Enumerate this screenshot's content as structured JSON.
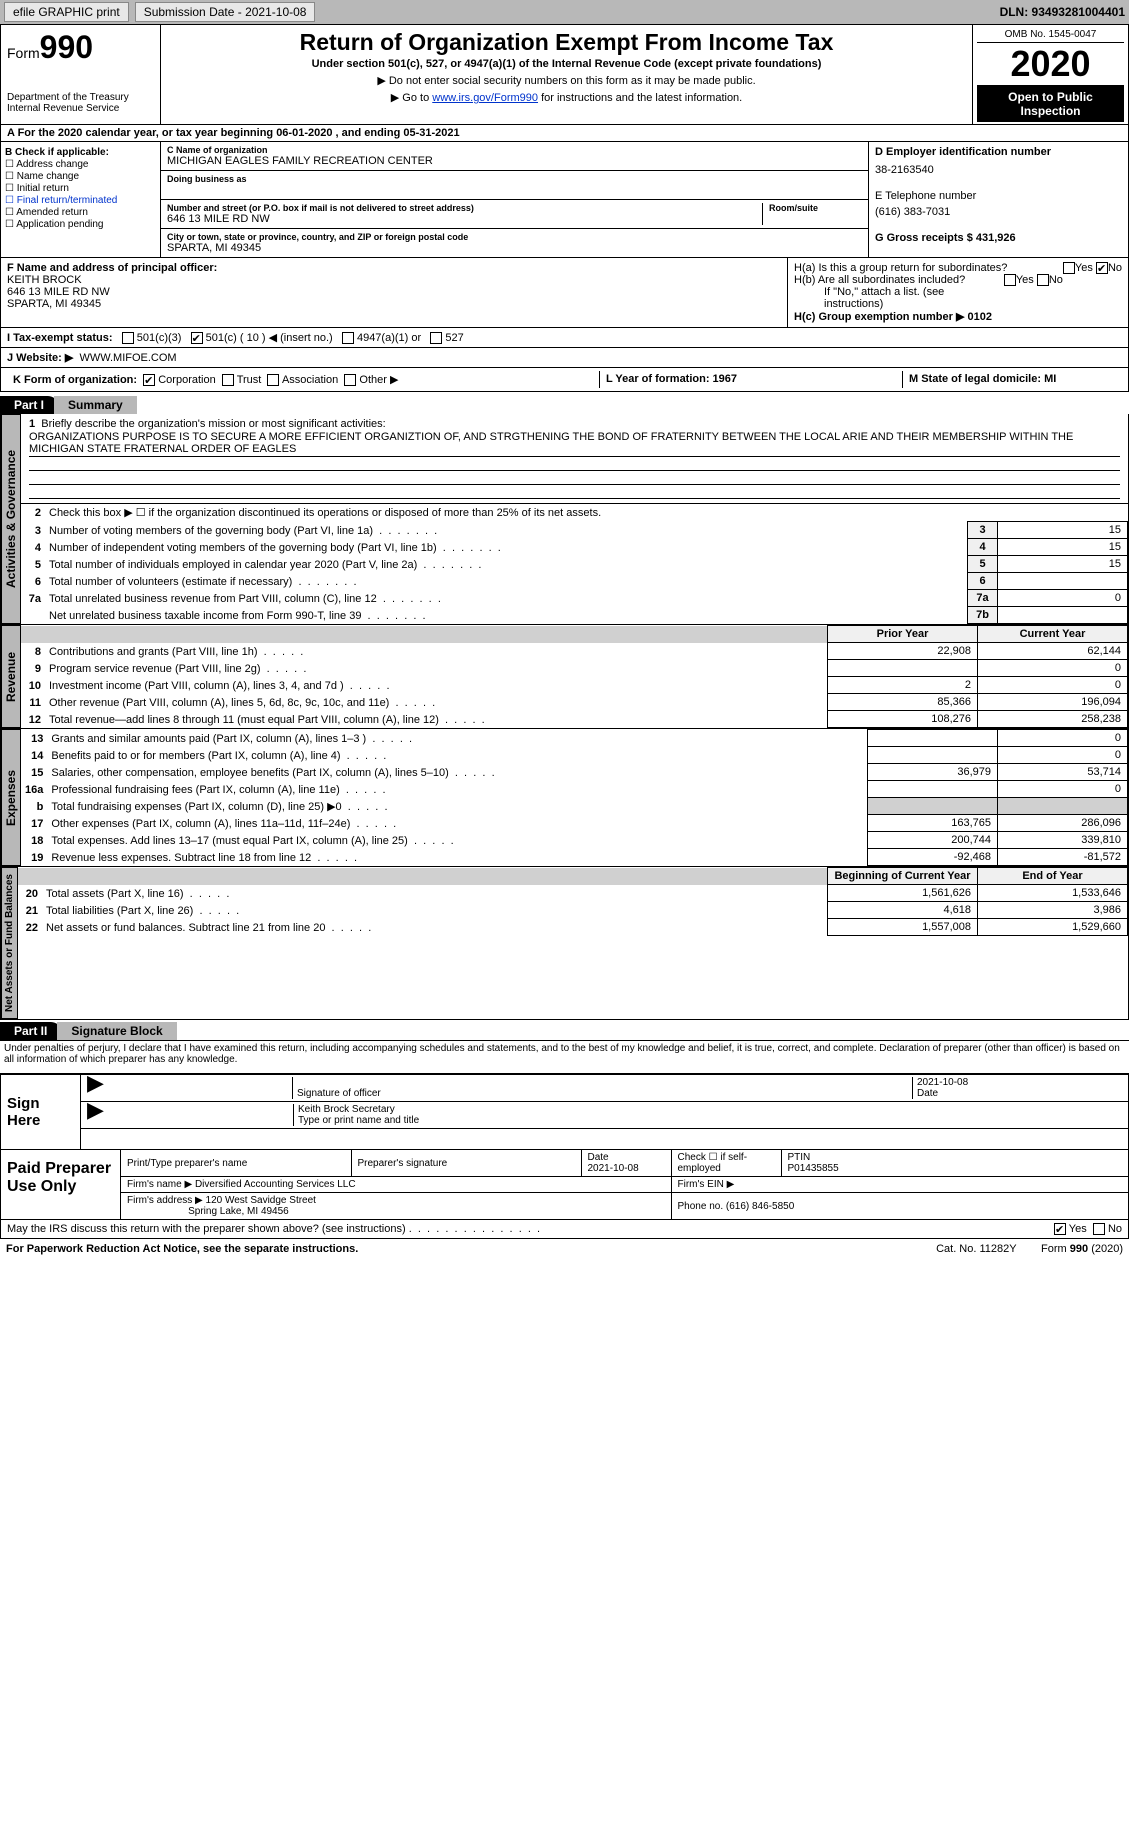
{
  "topbar": {
    "efile": "efile GRAPHIC print",
    "submission": "Submission Date - 2021-10-08",
    "dln": "DLN: 93493281004401"
  },
  "header": {
    "form_label": "Form",
    "form_num": "990",
    "dept": "Department of the Treasury Internal Revenue Service",
    "title": "Return of Organization Exempt From Income Tax",
    "subtitle": "Under section 501(c), 527, or 4947(a)(1) of the Internal Revenue Code (except private foundations)",
    "note1": "▶ Do not enter social security numbers on this form as it may be made public.",
    "note2_pre": "▶ Go to ",
    "note2_link": "www.irs.gov/Form990",
    "note2_post": " for instructions and the latest information.",
    "omb": "OMB No. 1545-0047",
    "year": "2020",
    "inspect": "Open to Public Inspection"
  },
  "row_a": "A For the 2020 calendar year, or tax year beginning 06-01-2020   , and ending 05-31-2021",
  "section_b": {
    "b_label": "B Check if applicable:",
    "checks": [
      "Address change",
      "Name change",
      "Initial return",
      "Final return/terminated",
      "Amended return",
      "Application pending"
    ],
    "c_label": "C Name of organization",
    "c_val": "MICHIGAN EAGLES FAMILY RECREATION CENTER",
    "dba_label": "Doing business as",
    "addr_label": "Number and street (or P.O. box if mail is not delivered to street address)",
    "addr_val": "646 13 MILE RD NW",
    "room_label": "Room/suite",
    "city_label": "City or town, state or province, country, and ZIP or foreign postal code",
    "city_val": "SPARTA, MI  49345",
    "d_label": "D Employer identification number",
    "d_val": "38-2163540",
    "e_label": "E Telephone number",
    "e_val": "(616) 383-7031",
    "g_label": "G Gross receipts $ 431,926"
  },
  "fhg": {
    "f_label": "F  Name and address of principal officer:",
    "f_name": "KEITH BROCK",
    "f_addr1": "646 13 MILE RD NW",
    "f_addr2": "SPARTA, MI  49345",
    "ha": "H(a)  Is this a group return for subordinates?",
    "hb": "H(b)  Are all subordinates included?",
    "hb_note": "If \"No,\" attach a list. (see instructions)",
    "hc": "H(c)  Group exemption number ▶   0102",
    "yes": "Yes",
    "no": "No"
  },
  "row_i": {
    "label": "I    Tax-exempt status:",
    "o1": "501(c)(3)",
    "o2": "501(c) ( 10 ) ◀ (insert no.)",
    "o3": "4947(a)(1) or",
    "o4": "527"
  },
  "row_j": {
    "label": "J   Website: ▶",
    "val": "WWW.MIFOE.COM"
  },
  "row_k": {
    "label": "K Form of organization:",
    "o1": "Corporation",
    "o2": "Trust",
    "o3": "Association",
    "o4": "Other ▶"
  },
  "row_lm": {
    "l": "L Year of formation: 1967",
    "m": "M State of legal domicile: MI"
  },
  "part1": {
    "label": "Part I",
    "title": "Summary",
    "tab1": "Activities & Governance",
    "tab2": "Revenue",
    "tab3": "Expenses",
    "tab4": "Net Assets or Fund Balances",
    "q1": "Briefly describe the organization's mission or most significant activities:",
    "q1v": "ORGANIZATIONS PURPOSE IS TO SECURE A MORE EFFICIENT ORGANIZTION OF, AND STRGTHENING THE BOND OF FRATERNITY BETWEEN THE LOCAL ARIE AND THEIR MEMBERSHIP WITHIN THE MICHIGAN STATE FRATERNAL ORDER OF EAGLES",
    "q2": "Check this box ▶ ☐  if the organization discontinued its operations or disposed of more than 25% of its net assets.",
    "rows_gov": [
      {
        "n": "3",
        "t": "Number of voting members of the governing body (Part VI, line 1a)",
        "b": "3",
        "v": "15"
      },
      {
        "n": "4",
        "t": "Number of independent voting members of the governing body (Part VI, line 1b)",
        "b": "4",
        "v": "15"
      },
      {
        "n": "5",
        "t": "Total number of individuals employed in calendar year 2020 (Part V, line 2a)",
        "b": "5",
        "v": "15"
      },
      {
        "n": "6",
        "t": "Total number of volunteers (estimate if necessary)",
        "b": "6",
        "v": ""
      },
      {
        "n": "7a",
        "t": "Total unrelated business revenue from Part VIII, column (C), line 12",
        "b": "7a",
        "v": "0"
      },
      {
        "n": "",
        "t": "Net unrelated business taxable income from Form 990-T, line 39",
        "b": "7b",
        "v": ""
      }
    ],
    "col_prior": "Prior Year",
    "col_curr": "Current Year",
    "rows_rev": [
      {
        "n": "8",
        "t": "Contributions and grants (Part VIII, line 1h)",
        "p": "22,908",
        "c": "62,144"
      },
      {
        "n": "9",
        "t": "Program service revenue (Part VIII, line 2g)",
        "p": "",
        "c": "0"
      },
      {
        "n": "10",
        "t": "Investment income (Part VIII, column (A), lines 3, 4, and 7d )",
        "p": "2",
        "c": "0"
      },
      {
        "n": "11",
        "t": "Other revenue (Part VIII, column (A), lines 5, 6d, 8c, 9c, 10c, and 11e)",
        "p": "85,366",
        "c": "196,094"
      },
      {
        "n": "12",
        "t": "Total revenue—add lines 8 through 11 (must equal Part VIII, column (A), line 12)",
        "p": "108,276",
        "c": "258,238"
      }
    ],
    "rows_exp": [
      {
        "n": "13",
        "t": "Grants and similar amounts paid (Part IX, column (A), lines 1–3 )",
        "p": "",
        "c": "0"
      },
      {
        "n": "14",
        "t": "Benefits paid to or for members (Part IX, column (A), line 4)",
        "p": "",
        "c": "0"
      },
      {
        "n": "15",
        "t": "Salaries, other compensation, employee benefits (Part IX, column (A), lines 5–10)",
        "p": "36,979",
        "c": "53,714"
      },
      {
        "n": "16a",
        "t": "Professional fundraising fees (Part IX, column (A), line 11e)",
        "p": "",
        "c": "0"
      },
      {
        "n": "b",
        "t": "Total fundraising expenses (Part IX, column (D), line 25) ▶0",
        "p": "shade",
        "c": "shade"
      },
      {
        "n": "17",
        "t": "Other expenses (Part IX, column (A), lines 11a–11d, 11f–24e)",
        "p": "163,765",
        "c": "286,096"
      },
      {
        "n": "18",
        "t": "Total expenses. Add lines 13–17 (must equal Part IX, column (A), line 25)",
        "p": "200,744",
        "c": "339,810"
      },
      {
        "n": "19",
        "t": "Revenue less expenses. Subtract line 18 from line 12",
        "p": "-92,468",
        "c": "-81,572"
      }
    ],
    "col_beg": "Beginning of Current Year",
    "col_end": "End of Year",
    "rows_net": [
      {
        "n": "20",
        "t": "Total assets (Part X, line 16)",
        "p": "1,561,626",
        "c": "1,533,646"
      },
      {
        "n": "21",
        "t": "Total liabilities (Part X, line 26)",
        "p": "4,618",
        "c": "3,986"
      },
      {
        "n": "22",
        "t": "Net assets or fund balances. Subtract line 21 from line 20",
        "p": "1,557,008",
        "c": "1,529,660"
      }
    ]
  },
  "part2": {
    "label": "Part II",
    "title": "Signature Block",
    "decl": "Under penalties of perjury, I declare that I have examined this return, including accompanying schedules and statements, and to the best of my knowledge and belief, it is true, correct, and complete. Declaration of preparer (other than officer) is based on all information of which preparer has any knowledge.",
    "sign_here": "Sign Here",
    "sig_officer": "Signature of officer",
    "sig_date": "2021-10-08",
    "date_lbl": "Date",
    "name_title": "Keith Brock  Secretary",
    "name_lbl": "Type or print name and title",
    "paid_prep": "Paid Preparer Use Only",
    "prep_name_lbl": "Print/Type preparer's name",
    "prep_sig_lbl": "Preparer's signature",
    "prep_date_lbl": "Date",
    "prep_date": "2021-10-08",
    "prep_check": "Check ☐ if self-employed",
    "ptin_lbl": "PTIN",
    "ptin": "P01435855",
    "firm_name_lbl": "Firm's name    ▶",
    "firm_name": "Diversified Accounting Services LLC",
    "firm_ein_lbl": "Firm's EIN ▶",
    "firm_addr_lbl": "Firm's address ▶",
    "firm_addr1": "120 West Savidge Street",
    "firm_addr2": "Spring Lake, MI  49456",
    "phone_lbl": "Phone no. (616) 846-5850",
    "discuss": "May the IRS discuss this return with the preparer shown above? (see instructions)",
    "yes": "Yes",
    "no": "No"
  },
  "footer": {
    "left": "For Paperwork Reduction Act Notice, see the separate instructions.",
    "mid": "Cat. No. 11282Y",
    "right": "Form 990 (2020)"
  },
  "colors": {
    "bg_gray": "#b8b8b8",
    "link": "#0033cc"
  }
}
